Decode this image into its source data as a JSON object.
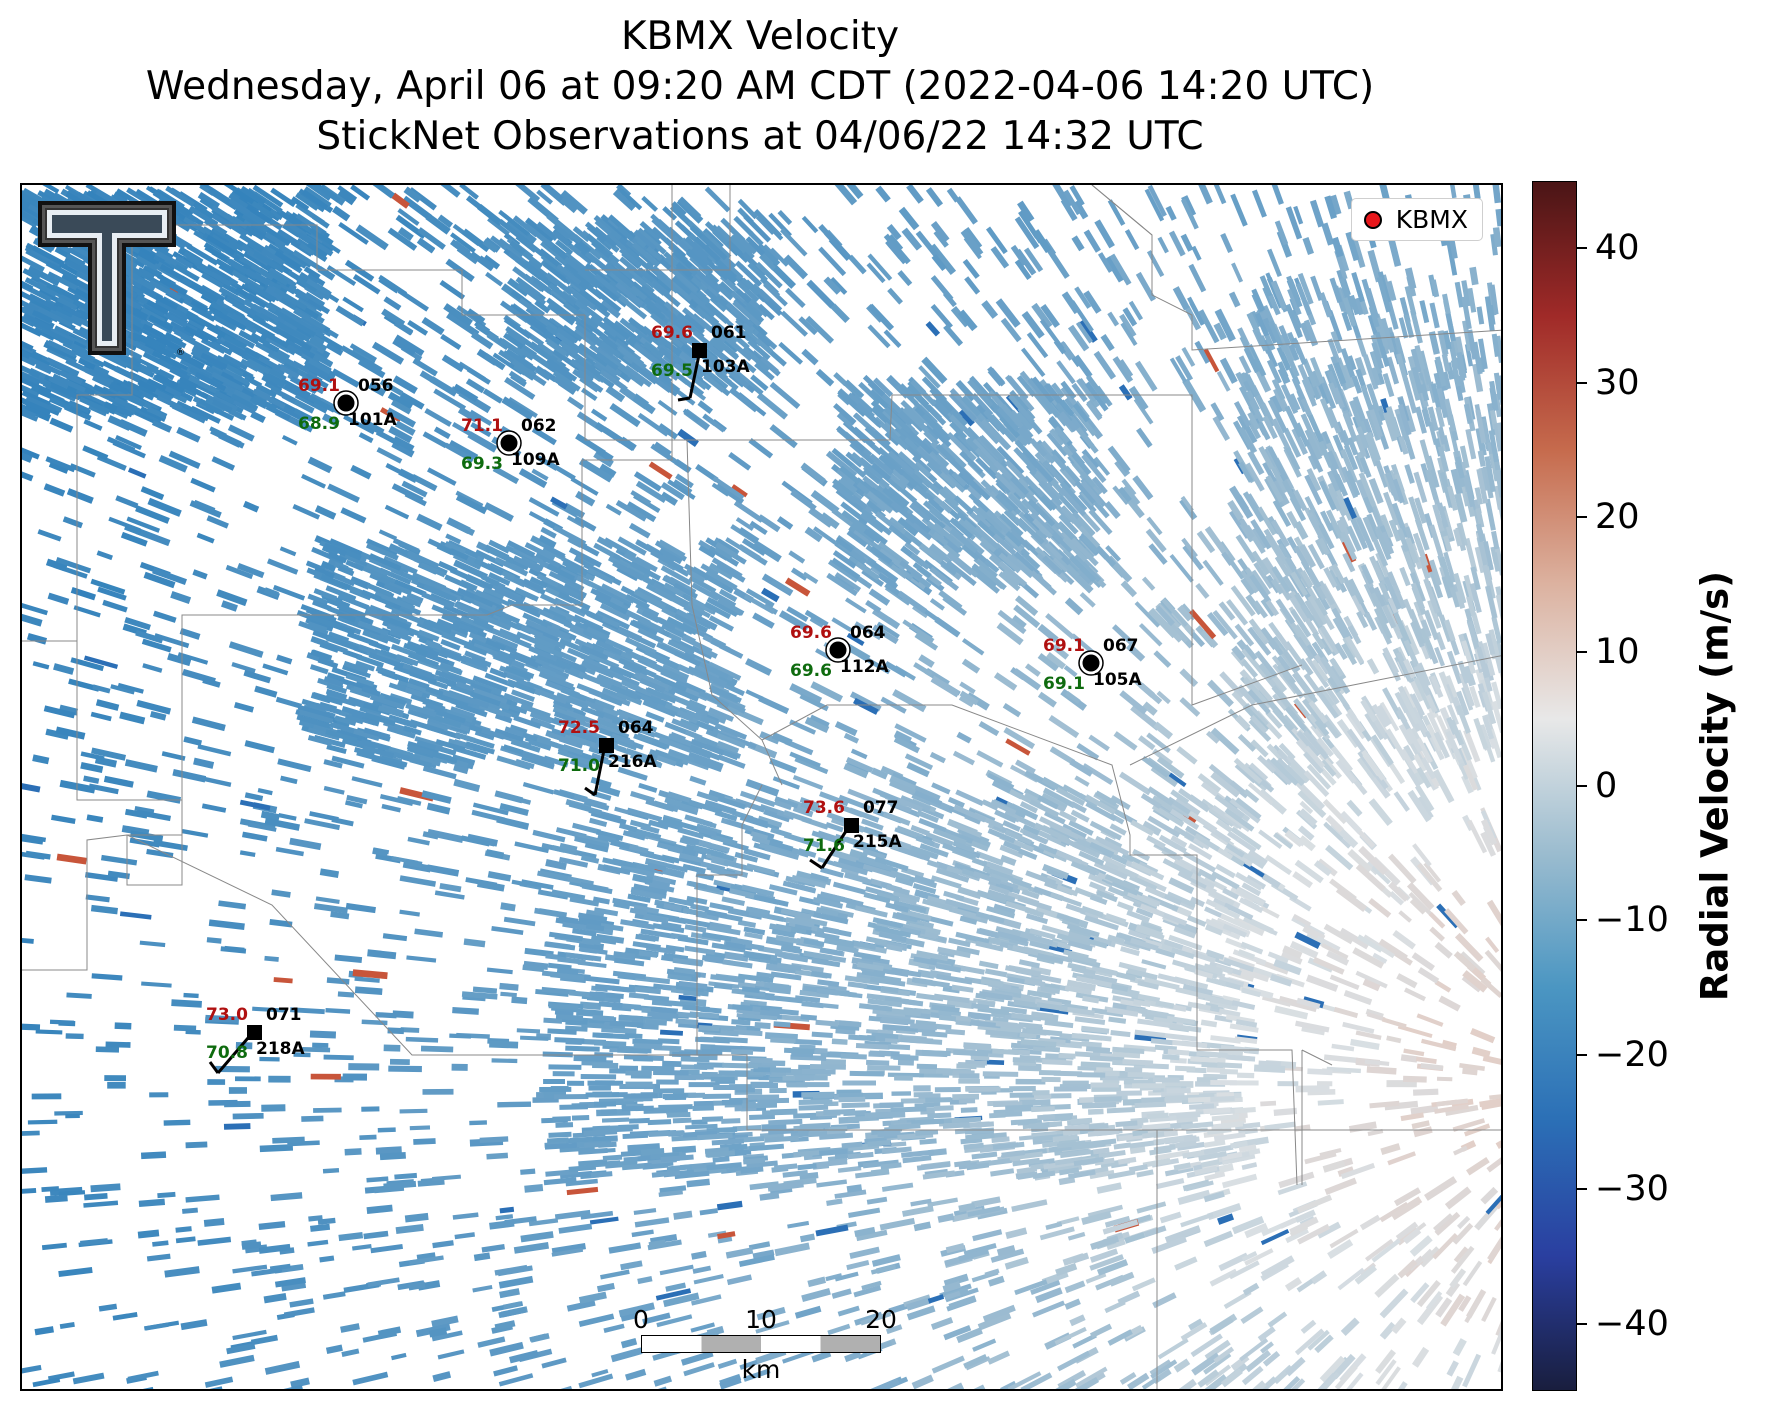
{
  "title": {
    "line1": "KBMX Velocity",
    "line2": "Wednesday, April 06 at 09:20 AM CDT (2022-04-06 14:20 UTC)",
    "line3": "StickNet Observations at 04/06/22 14:32 UTC"
  },
  "legend": {
    "label": "KBMX",
    "marker_color": "#e8171b"
  },
  "colorbar": {
    "label": "Radial Velocity (m/s)",
    "ticks": [
      "40",
      "30",
      "20",
      "10",
      "0",
      "−10",
      "−20",
      "−30",
      "−40"
    ],
    "range": [
      -45,
      45
    ],
    "colors": [
      "#191e3e",
      "#2a3fa0",
      "#2b6fb6",
      "#4b96c2",
      "#9bbccf",
      "#e8e8e8",
      "#dcb2a0",
      "#c66b4d",
      "#a02a28",
      "#4a1516"
    ]
  },
  "scale_bar": {
    "ticks": [
      "0",
      "10",
      "20"
    ],
    "unit": "km"
  },
  "stations": [
    {
      "id": "101A",
      "temp": "69.1",
      "dew": "68.9",
      "wind": "056",
      "marker": "circle"
    },
    {
      "id": "109A",
      "temp": "71.1",
      "dew": "69.3",
      "wind": "062",
      "marker": "circle"
    },
    {
      "id": "103A",
      "temp": "69.6",
      "dew": "69.5",
      "wind": "061",
      "marker": "square"
    },
    {
      "id": "112A",
      "temp": "69.6",
      "dew": "69.6",
      "wind": "064",
      "marker": "circle"
    },
    {
      "id": "105A",
      "temp": "69.1",
      "dew": "69.1",
      "wind": "067",
      "marker": "circle"
    },
    {
      "id": "216A",
      "temp": "72.5",
      "dew": "71.0",
      "wind": "064",
      "marker": "square"
    },
    {
      "id": "215A",
      "temp": "73.6",
      "dew": "71.6",
      "wind": "077",
      "marker": "square"
    },
    {
      "id": "218A",
      "temp": "73.0",
      "dew": "70.8",
      "wind": "071",
      "marker": "square"
    }
  ],
  "text_colors": {
    "temp": "#b01010",
    "dew": "#0e6b0e",
    "id": "#000000"
  },
  "logo": {
    "name": "Texas Tech double-T logo"
  }
}
